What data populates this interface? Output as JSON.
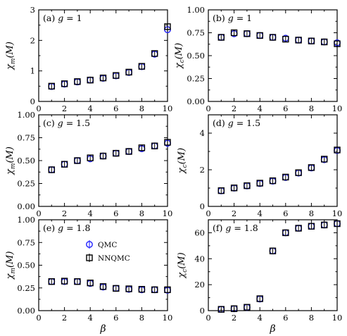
{
  "figure": {
    "xlabel": "β",
    "legend": {
      "entries": [
        {
          "label": "QMC",
          "color": "#1f1fff",
          "marker": "circle"
        },
        {
          "label": "NNQMC",
          "color": "#000000",
          "marker": "square"
        }
      ]
    }
  },
  "chart_data": [
    {
      "id": "a",
      "type": "scatter",
      "panel_label": "(a) g = 1",
      "ylabel": "χ_m(M)",
      "xlim": [
        0,
        10
      ],
      "ylim": [
        0,
        3
      ],
      "xticks": [
        0,
        2,
        4,
        6,
        8,
        10
      ],
      "yticks": [
        0,
        1,
        2,
        3
      ],
      "ytick_labels": [
        "0",
        "1",
        "2",
        "3"
      ],
      "x": [
        1,
        2,
        3,
        4,
        5,
        6,
        7,
        8,
        9,
        10
      ],
      "series": [
        {
          "name": "QMC",
          "values": [
            0.49,
            0.57,
            0.64,
            0.7,
            0.76,
            0.84,
            0.95,
            1.14,
            1.55,
            2.35
          ]
        },
        {
          "name": "NNQMC",
          "values": [
            0.5,
            0.58,
            0.65,
            0.7,
            0.77,
            0.85,
            0.96,
            1.15,
            1.57,
            2.45
          ]
        }
      ]
    },
    {
      "id": "b",
      "type": "scatter",
      "panel_label": "(b) g = 1",
      "ylabel": "χ_c(M)",
      "xlim": [
        0,
        10
      ],
      "ylim": [
        0,
        1
      ],
      "xticks": [
        0,
        2,
        4,
        6,
        8,
        10
      ],
      "yticks": [
        0,
        0.25,
        0.5,
        0.75,
        1
      ],
      "ytick_labels": [
        "0.00",
        "0.25",
        "0.50",
        "0.75",
        "1.00"
      ],
      "x": [
        1,
        2,
        3,
        4,
        5,
        6,
        7,
        8,
        9,
        10
      ],
      "series": [
        {
          "name": "QMC",
          "values": [
            0.7,
            0.74,
            0.74,
            0.72,
            0.7,
            0.69,
            0.67,
            0.66,
            0.65,
            0.64
          ]
        },
        {
          "name": "NNQMC",
          "values": [
            0.7,
            0.75,
            0.74,
            0.72,
            0.7,
            0.68,
            0.67,
            0.66,
            0.65,
            0.63
          ]
        }
      ]
    },
    {
      "id": "c",
      "type": "scatter",
      "panel_label": "(c) g = 1.5",
      "ylabel": "χ_m(M)",
      "xlim": [
        0,
        10
      ],
      "ylim": [
        0,
        1
      ],
      "xticks": [
        0,
        2,
        4,
        6,
        8,
        10
      ],
      "yticks": [
        0,
        0.25,
        0.5,
        0.75,
        1
      ],
      "ytick_labels": [
        "0.00",
        "0.25",
        "0.50",
        "0.75",
        "1.00"
      ],
      "x": [
        1,
        2,
        3,
        4,
        5,
        6,
        7,
        8,
        9,
        10
      ],
      "series": [
        {
          "name": "QMC",
          "values": [
            0.4,
            0.46,
            0.5,
            0.52,
            0.55,
            0.58,
            0.6,
            0.63,
            0.66,
            0.69
          ]
        },
        {
          "name": "NNQMC",
          "values": [
            0.4,
            0.46,
            0.5,
            0.53,
            0.55,
            0.58,
            0.6,
            0.64,
            0.66,
            0.7
          ]
        }
      ]
    },
    {
      "id": "d",
      "type": "scatter",
      "panel_label": "(d) g = 1.5",
      "ylabel": "χ_c(M)",
      "xlim": [
        0,
        10
      ],
      "ylim": [
        0,
        5
      ],
      "xticks": [
        0,
        2,
        4,
        6,
        8,
        10
      ],
      "yticks": [
        0,
        2,
        4
      ],
      "ytick_labels": [
        "0",
        "2",
        "4"
      ],
      "x": [
        1,
        2,
        3,
        4,
        5,
        6,
        7,
        8,
        9,
        10
      ],
      "series": [
        {
          "name": "QMC",
          "values": [
            0.85,
            1.0,
            1.12,
            1.25,
            1.38,
            1.58,
            1.82,
            2.1,
            2.55,
            3.05
          ]
        },
        {
          "name": "NNQMC",
          "values": [
            0.86,
            1.01,
            1.13,
            1.27,
            1.4,
            1.6,
            1.84,
            2.12,
            2.58,
            3.08
          ]
        }
      ]
    },
    {
      "id": "e",
      "type": "scatter",
      "panel_label": "(e) g = 1.8",
      "ylabel": "χ_m(M)",
      "xlim": [
        0,
        10
      ],
      "ylim": [
        0,
        1
      ],
      "xticks": [
        0,
        2,
        4,
        6,
        8,
        10
      ],
      "yticks": [
        0,
        0.25,
        0.5,
        0.75,
        1
      ],
      "ytick_labels": [
        "0.00",
        "0.25",
        "0.50",
        "0.75",
        "1.00"
      ],
      "x": [
        1,
        2,
        3,
        4,
        5,
        6,
        7,
        8,
        9,
        10
      ],
      "series": [
        {
          "name": "QMC",
          "values": [
            0.32,
            0.32,
            0.32,
            0.3,
            0.26,
            0.245,
            0.235,
            0.23,
            0.23,
            0.225
          ]
        },
        {
          "name": "NNQMC",
          "values": [
            0.32,
            0.325,
            0.32,
            0.305,
            0.265,
            0.245,
            0.24,
            0.235,
            0.23,
            0.23
          ]
        }
      ]
    },
    {
      "id": "f",
      "type": "scatter",
      "panel_label": "(f) g = 1.8",
      "ylabel": "χ_c(M)",
      "xlim": [
        0,
        10
      ],
      "ylim": [
        0,
        70
      ],
      "xticks": [
        0,
        2,
        4,
        6,
        8,
        10
      ],
      "yticks": [
        0,
        20,
        40,
        60
      ],
      "ytick_labels": [
        "0",
        "20",
        "40",
        "60"
      ],
      "x": [
        1,
        2,
        3,
        4,
        5,
        6,
        7,
        8,
        9,
        10
      ],
      "series": [
        {
          "name": "QMC",
          "values": [
            1.0,
            1.5,
            2.5,
            9.0,
            46,
            60,
            63.5,
            65,
            66,
            67
          ]
        },
        {
          "name": "NNQMC",
          "values": [
            1.0,
            1.5,
            2.6,
            9.2,
            46,
            60,
            63.5,
            65,
            66,
            67
          ]
        }
      ]
    }
  ]
}
